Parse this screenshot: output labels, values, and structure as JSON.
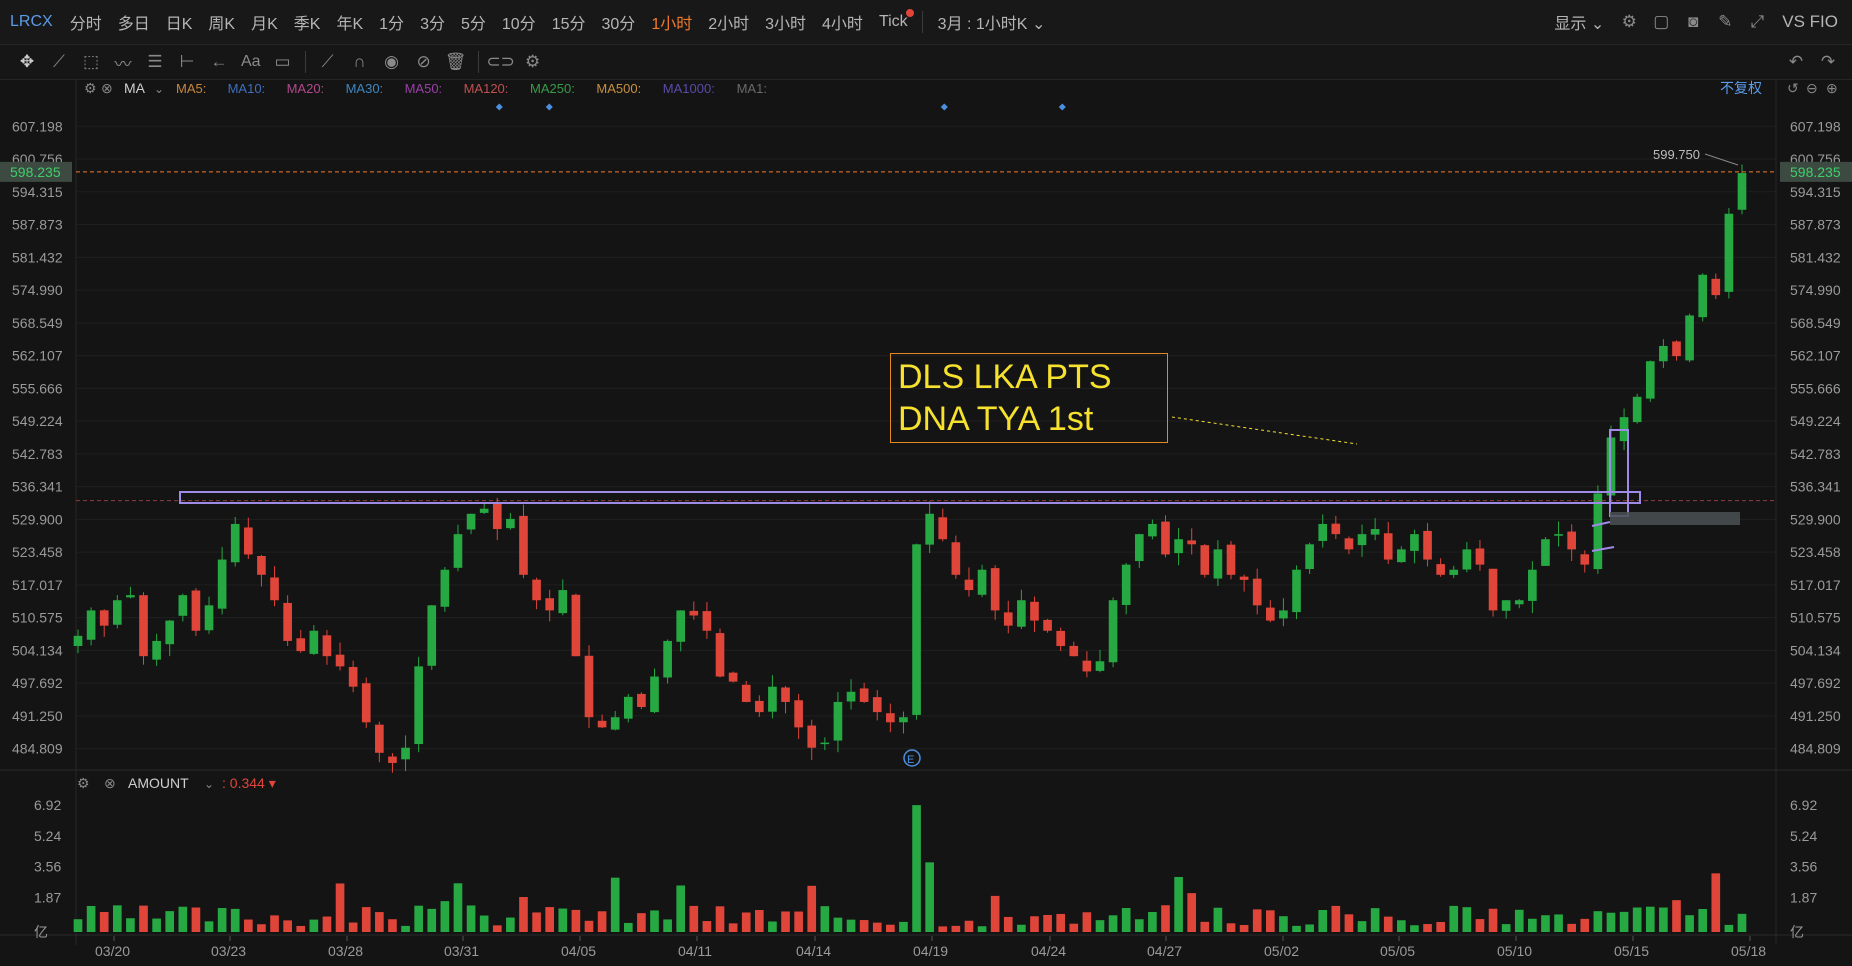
{
  "topbar": {
    "symbol": "LRCX",
    "periods": [
      "分时",
      "多日",
      "日K",
      "周K",
      "月K",
      "季K",
      "年K",
      "1分",
      "3分",
      "5分",
      "10分",
      "15分",
      "30分",
      "1小时",
      "2小时",
      "3小时",
      "4小时",
      "Tick"
    ],
    "active_period": "1小时",
    "period_dropdown": "3月 : 1小时K",
    "display_label": "显示",
    "vs_label": "VS FIO"
  },
  "toolbar": {
    "tools": [
      "move-icon",
      "line-tool-icon",
      "rect-tool-icon",
      "wave-tool-icon",
      "fib-tool-icon",
      "range-tool-icon",
      "arrow-tool-icon",
      "text-tool-icon",
      "comment-tool-icon",
      "ruler-icon",
      "magnet-icon",
      "eye-icon",
      "hide-icon",
      "trash-icon",
      "link-icon",
      "settings-icon"
    ],
    "text_tool_label": "Aa"
  },
  "indicator_bar": {
    "name": "MA",
    "items": [
      {
        "label": "MA5:",
        "color": "#c8863d"
      },
      {
        "label": "MA10:",
        "color": "#3f6fbf"
      },
      {
        "label": "MA20:",
        "color": "#b04a8d"
      },
      {
        "label": "MA30:",
        "color": "#3f86bf"
      },
      {
        "label": "MA50:",
        "color": "#9b3fa8"
      },
      {
        "label": "MA120:",
        "color": "#c0504d"
      },
      {
        "label": "MA250:",
        "color": "#3a9a4a"
      },
      {
        "label": "MA500:",
        "color": "#c8903d"
      },
      {
        "label": "MA1000:",
        "color": "#5a4aa8"
      },
      {
        "label": "MA1:",
        "color": "#6a6a6a"
      }
    ],
    "adjust_label": "不复权"
  },
  "volume_bar": {
    "name": "AMOUNT",
    "value": "0.344"
  },
  "colors": {
    "up": "#26a843",
    "down": "#e0453a",
    "accent": "#f07a2a",
    "box": "#a08ae8",
    "annotation": "#f5e12e"
  },
  "annotation": {
    "line1": "DLS LKA PTS",
    "line2": "DNA TYA 1st"
  },
  "chart_data": [
    {
      "type": "candlestick",
      "title": "",
      "y_ticks": [
        "607.198",
        "600.756",
        "594.315",
        "587.873",
        "581.432",
        "574.990",
        "568.549",
        "562.107",
        "555.666",
        "549.224",
        "542.783",
        "536.341",
        "529.900",
        "523.458",
        "517.017",
        "510.575",
        "504.134",
        "497.692",
        "491.250",
        "484.809"
      ],
      "x_ticks": [
        "03/20",
        "03/23",
        "03/28",
        "03/31",
        "04/05",
        "04/11",
        "04/14",
        "04/19",
        "04/24",
        "04/27",
        "05/02",
        "05/05",
        "05/10",
        "05/15",
        "05/18"
      ],
      "ylim": [
        481.6,
        610.4
      ],
      "last_price": "598.235",
      "high_marker": "599.750",
      "resistance_level": 533.2,
      "closes": [
        507,
        512,
        509,
        514,
        515,
        503,
        506,
        510,
        515,
        508,
        513,
        522,
        529,
        523,
        519,
        514,
        506,
        504,
        508,
        503,
        501,
        497,
        490,
        484,
        482,
        485,
        501,
        513,
        520,
        527,
        531,
        532,
        528,
        530,
        519,
        514,
        512,
        516,
        503,
        491,
        489,
        491,
        495,
        493,
        499,
        506,
        512,
        511,
        508,
        499,
        498,
        494,
        492,
        497,
        494,
        489,
        485,
        486,
        494,
        496,
        494,
        492,
        490,
        491,
        525,
        531,
        526,
        519,
        516,
        520,
        512,
        509,
        514,
        510,
        508,
        505,
        503,
        500,
        502,
        514,
        521,
        527,
        529,
        523,
        526,
        525,
        519,
        524,
        519,
        518,
        513,
        510,
        512,
        520,
        525,
        529,
        527,
        524,
        527,
        528,
        522,
        524,
        527,
        522,
        519,
        520,
        524,
        521,
        512,
        514,
        514,
        520,
        526,
        527,
        524,
        521,
        535,
        546,
        550,
        554,
        561,
        564,
        562,
        570,
        578,
        574,
        590,
        598
      ],
      "amount_yticks": [
        "6.92",
        "5.24",
        "3.56",
        "1.87",
        "亿"
      ],
      "amount_ylim": [
        0,
        7.2
      ]
    }
  ]
}
